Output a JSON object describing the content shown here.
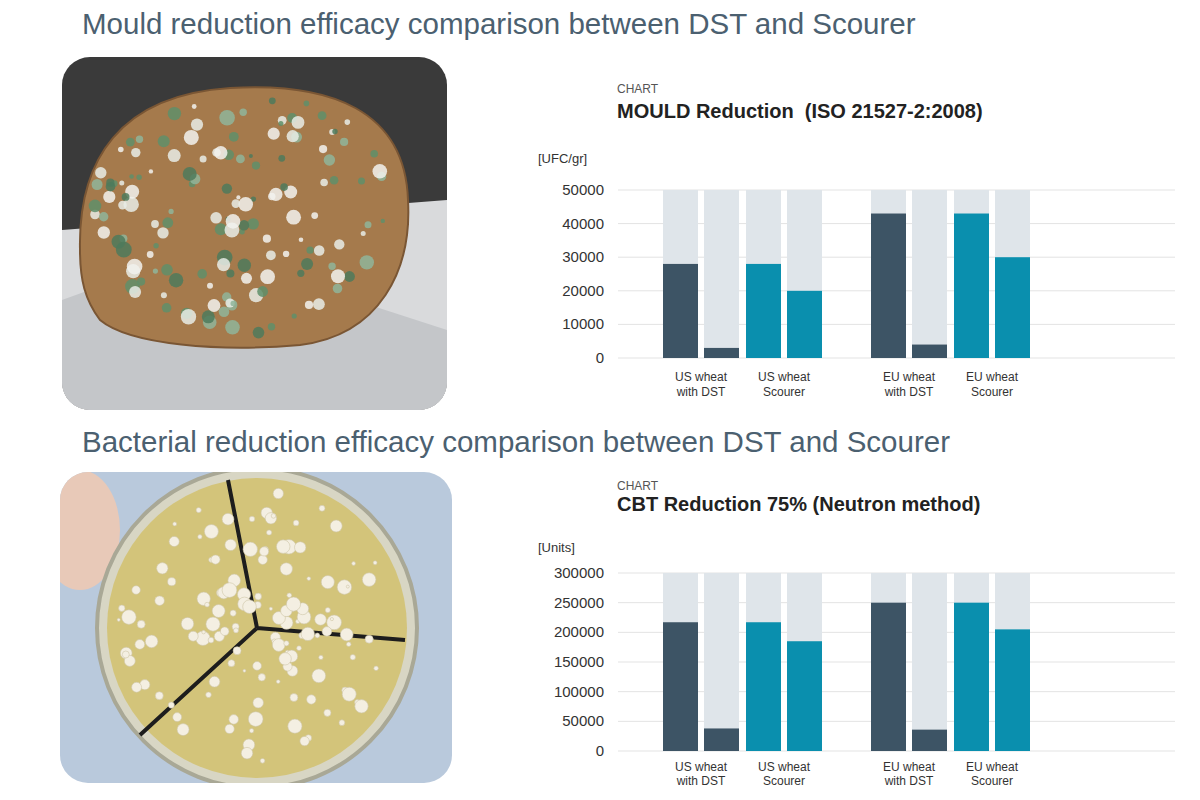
{
  "page": {
    "headings": [
      "Mould reduction efficacy comparison between DST and Scourer",
      "Bacterial reduction efficacy comparison between DST and Scourer"
    ]
  },
  "chart_data": [
    {
      "type": "bar",
      "subtitle": "CHART",
      "title": "MOULD Reduction  (ISO 21527-2:2008)",
      "ylabel": "[UFC/gr]",
      "categories": [
        "US wheat with DST",
        "US wheat Scourer",
        "EU wheat with DST",
        "EU wheat Scourer"
      ],
      "series": [
        {
          "values": [
            28000,
            28000,
            43000,
            43000
          ],
          "colors": [
            "#3d5465",
            "#0a8fae",
            "#3d5465",
            "#0a8fae"
          ]
        },
        {
          "values": [
            3000,
            20000,
            4000,
            30000
          ],
          "colors": [
            "#3d5465",
            "#0a8fae",
            "#3d5465",
            "#0a8fae"
          ]
        }
      ],
      "ylim": [
        0,
        50000
      ],
      "yticks": [
        0,
        10000,
        20000,
        30000,
        40000,
        50000
      ],
      "grid": true
    },
    {
      "type": "bar",
      "subtitle": "CHART",
      "title": "CBT Reduction 75% (Neutron method)",
      "ylabel": "[Units]",
      "categories": [
        "US wheat with DST",
        "US wheat Scourer",
        "EU wheat with DST",
        "EU wheat Scourer"
      ],
      "series": [
        {
          "values": [
            217000,
            217000,
            250000,
            250000
          ],
          "colors": [
            "#3d5465",
            "#0a8fae",
            "#3d5465",
            "#0a8fae"
          ]
        },
        {
          "values": [
            38000,
            185000,
            36000,
            205000
          ],
          "colors": [
            "#3d5465",
            "#0a8fae",
            "#3d5465",
            "#0a8fae"
          ]
        }
      ],
      "ylim": [
        0,
        300000
      ],
      "yticks": [
        0,
        50000,
        100000,
        150000,
        200000,
        250000,
        300000
      ],
      "grid": true
    }
  ]
}
